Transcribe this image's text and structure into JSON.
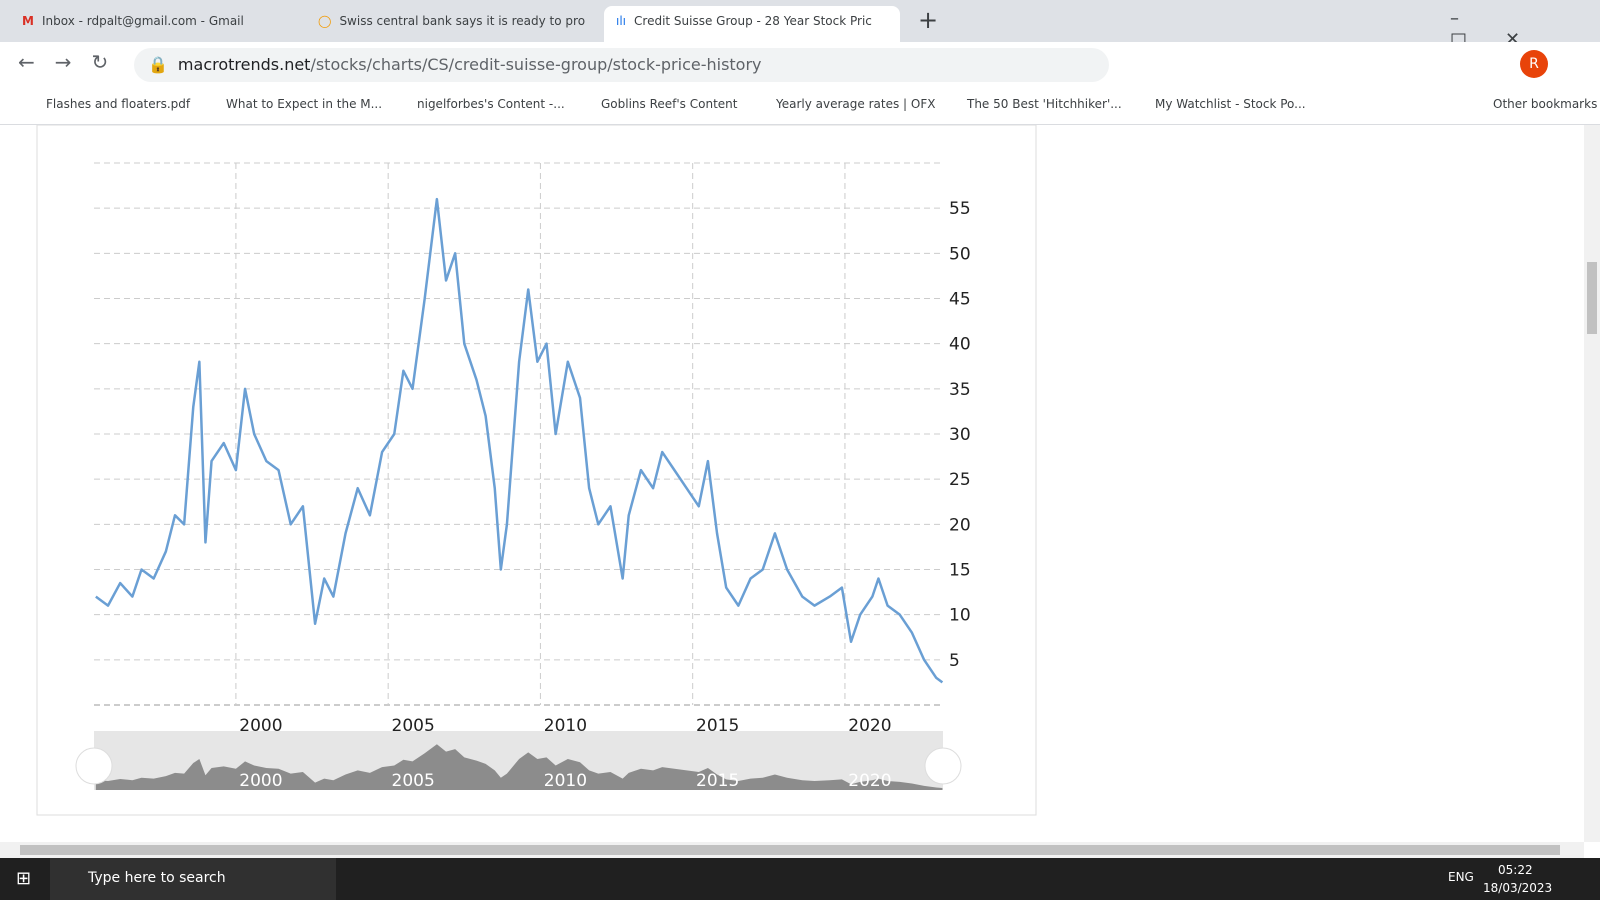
{
  "browser": {
    "tabs": [
      "Inbox - rdpalt@gmail.com - Gmail",
      "Swiss central bank says it is ready to pro",
      "Credit Suisse Group - 28 Year Stock Pric"
    ],
    "url_host": "macrotrends.net",
    "url_path": "/stocks/charts/CS/credit-suisse-group/stock-price-history",
    "bookmarks": [
      "Flashes and floaters.pdf",
      "What to Expect in the M...",
      "nigelforbes's Content -...",
      "Goblins Reef's Content",
      "Yearly average rates | OFX",
      "The 50 Best 'Hitchhiker'...",
      "My Watchlist - Stock Po..."
    ],
    "other_bookmarks": "Other bookmarks",
    "profile": "R"
  },
  "chart_data": {
    "type": "line",
    "color": "#6a9fd4",
    "grid": true,
    "x": [
      1995.4,
      1995.8,
      1996.2,
      1996.6,
      1996.9,
      1997.3,
      1997.7,
      1998.0,
      1998.3,
      1998.6,
      1998.8,
      1999.0,
      1999.2,
      1999.6,
      2000.0,
      2000.3,
      2000.6,
      2001.0,
      2001.4,
      2001.8,
      2002.2,
      2002.6,
      2002.9,
      2003.2,
      2003.6,
      2004.0,
      2004.4,
      2004.8,
      2005.2,
      2005.5,
      2005.8,
      2006.2,
      2006.6,
      2006.9,
      2007.2,
      2007.5,
      2007.9,
      2008.2,
      2008.5,
      2008.7,
      2008.9,
      2009.3,
      2009.6,
      2009.9,
      2010.2,
      2010.5,
      2010.9,
      2011.3,
      2011.6,
      2011.9,
      2012.3,
      2012.7,
      2012.9,
      2013.3,
      2013.7,
      2014.0,
      2014.4,
      2014.8,
      2015.2,
      2015.5,
      2015.8,
      2016.1,
      2016.5,
      2016.9,
      2017.3,
      2017.7,
      2018.1,
      2018.6,
      2019.0,
      2019.5,
      2019.9,
      2020.2,
      2020.5,
      2020.9,
      2021.1,
      2021.4,
      2021.8,
      2022.2,
      2022.6,
      2023.0,
      2023.2
    ],
    "values": [
      12,
      11,
      13.5,
      12,
      15,
      14,
      17,
      21,
      20,
      33,
      38,
      18,
      27,
      29,
      26,
      35,
      30,
      27,
      26,
      20,
      22,
      9,
      14,
      12,
      19,
      24,
      21,
      28,
      30,
      37,
      35,
      45,
      56,
      47,
      50,
      40,
      36,
      32,
      24,
      15,
      20,
      38,
      46,
      38,
      40,
      30,
      38,
      34,
      24,
      20,
      22,
      14,
      21,
      26,
      24,
      28,
      26,
      24,
      22,
      27,
      19,
      13,
      11,
      14,
      15,
      19,
      15,
      12,
      11,
      12,
      13,
      7,
      10,
      12,
      14,
      11,
      10,
      8,
      5,
      3,
      2.5
    ],
    "xlim": [
      1995.34,
      2023.22
    ],
    "xticks": [
      2000,
      2005,
      2010,
      2015,
      2020
    ],
    "ylim": [
      0,
      60
    ],
    "yticks": [
      5,
      10,
      15,
      20,
      25,
      30,
      35,
      40,
      45,
      50,
      55
    ]
  },
  "taskbar": {
    "search": "Type here to search",
    "language": "ENG",
    "time": "05:22",
    "date": "18/03/2023"
  }
}
